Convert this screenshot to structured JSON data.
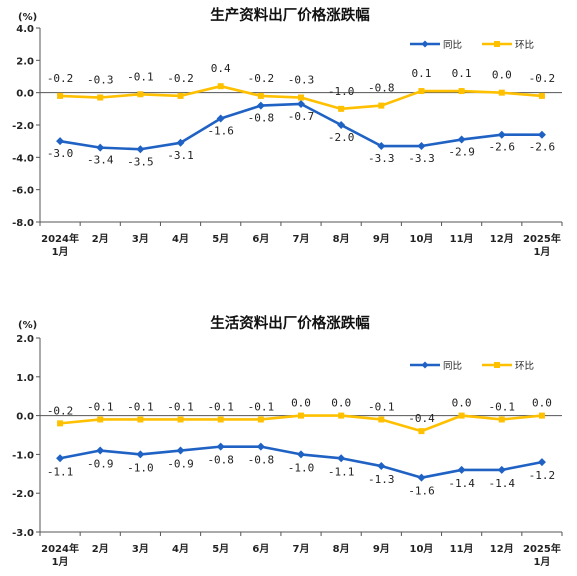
{
  "colors": {
    "yoy": "#1f62c4",
    "mom": "#ffc000",
    "axis": "#555555",
    "grid": "#d9d9d9"
  },
  "chart_data": [
    {
      "type": "line",
      "title": "生产资料出厂价格涨跌幅",
      "unit": "(%)",
      "categories": [
        [
          "2024年",
          "1月"
        ],
        [
          "2月"
        ],
        [
          "3月"
        ],
        [
          "4月"
        ],
        [
          "5月"
        ],
        [
          "6月"
        ],
        [
          "7月"
        ],
        [
          "8月"
        ],
        [
          "9月"
        ],
        [
          "10月"
        ],
        [
          "11月"
        ],
        [
          "12月"
        ],
        [
          "2025年",
          "1月"
        ]
      ],
      "ylim": [
        -8.0,
        4.0
      ],
      "yticks": [
        4.0,
        2.0,
        0.0,
        -2.0,
        -4.0,
        -6.0,
        -8.0
      ],
      "ytick_labels": [
        "4.0",
        "2.0",
        "0.0",
        "-2.0",
        "-4.0",
        "-6.0",
        "-8.0"
      ],
      "legend_position": "top-right",
      "series": [
        {
          "name": "同比",
          "color_key": "yoy",
          "marker": "diamond",
          "values": [
            -3.0,
            -3.4,
            -3.5,
            -3.1,
            -1.6,
            -0.8,
            -0.7,
            -2.0,
            -3.3,
            -3.3,
            -2.9,
            -2.6,
            -2.6
          ],
          "labels": [
            "-3.0",
            "-3.4",
            "-3.5",
            "-3.1",
            "-1.6",
            "-0.8",
            "-0.7",
            "-2.0",
            "-3.3",
            "-3.3",
            "-2.9",
            "-2.6",
            "-2.6"
          ]
        },
        {
          "name": "环比",
          "color_key": "mom",
          "marker": "square",
          "values": [
            -0.2,
            -0.3,
            -0.1,
            -0.2,
            0.4,
            -0.2,
            -0.3,
            -1.0,
            -0.8,
            0.1,
            0.1,
            0.0,
            -0.2
          ],
          "labels": [
            "-0.2",
            "-0.3",
            "-0.1",
            "-0.2",
            "0.4",
            "-0.2",
            "-0.3",
            "-1.0",
            "-0.8",
            "0.1",
            "0.1",
            "0.0",
            "-0.2"
          ]
        }
      ]
    },
    {
      "type": "line",
      "title": "生活资料出厂价格涨跌幅",
      "unit": "(%)",
      "categories": [
        [
          "2024年",
          "1月"
        ],
        [
          "2月"
        ],
        [
          "3月"
        ],
        [
          "4月"
        ],
        [
          "5月"
        ],
        [
          "6月"
        ],
        [
          "7月"
        ],
        [
          "8月"
        ],
        [
          "9月"
        ],
        [
          "10月"
        ],
        [
          "11月"
        ],
        [
          "12月"
        ],
        [
          "2025年",
          "1月"
        ]
      ],
      "ylim": [
        -3.0,
        2.0
      ],
      "yticks": [
        2.0,
        1.0,
        0.0,
        -1.0,
        -2.0,
        -3.0
      ],
      "ytick_labels": [
        "2.0",
        "1.0",
        "0.0",
        "-1.0",
        "-2.0",
        "-3.0"
      ],
      "legend_position": "top-right",
      "series": [
        {
          "name": "同比",
          "color_key": "yoy",
          "marker": "diamond",
          "values": [
            -1.1,
            -0.9,
            -1.0,
            -0.9,
            -0.8,
            -0.8,
            -1.0,
            -1.1,
            -1.3,
            -1.6,
            -1.4,
            -1.4,
            -1.2
          ],
          "labels": [
            "-1.1",
            "-0.9",
            "-1.0",
            "-0.9",
            "-0.8",
            "-0.8",
            "-1.0",
            "-1.1",
            "-1.3",
            "-1.6",
            "-1.4",
            "-1.4",
            "-1.2"
          ]
        },
        {
          "name": "环比",
          "color_key": "mom",
          "marker": "square",
          "values": [
            -0.2,
            -0.1,
            -0.1,
            -0.1,
            -0.1,
            -0.1,
            0.0,
            0.0,
            -0.1,
            -0.4,
            0.0,
            -0.1,
            0.0
          ],
          "labels": [
            "-0.2",
            "-0.1",
            "-0.1",
            "-0.1",
            "-0.1",
            "-0.1",
            "0.0",
            "0.0",
            "-0.1",
            "-0.4",
            "0.0",
            "-0.1",
            "0.0"
          ]
        }
      ]
    }
  ]
}
